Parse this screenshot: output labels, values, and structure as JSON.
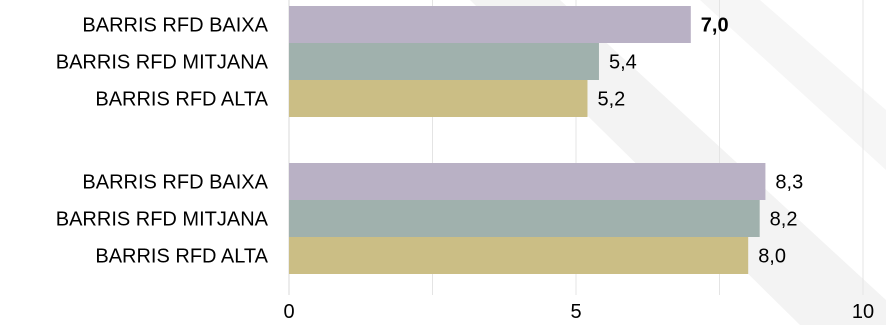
{
  "chart_data": {
    "type": "bar",
    "orientation": "horizontal",
    "xlim": [
      0,
      10
    ],
    "x_ticks": [
      "0",
      "5",
      "10"
    ],
    "grid": "vertical",
    "legend": "none",
    "groups": [
      {
        "bars": [
          {
            "category": "BARRIS RFD BAIXA",
            "value": 7.0,
            "label": "7,0",
            "bold": true,
            "color": "#b9b1c5"
          },
          {
            "category": "BARRIS RFD MITJANA",
            "value": 5.4,
            "label": "5,4",
            "bold": false,
            "color": "#a0b1ad"
          },
          {
            "category": "BARRIS RFD ALTA",
            "value": 5.2,
            "label": "5,2",
            "bold": false,
            "color": "#cbbe85"
          }
        ]
      },
      {
        "bars": [
          {
            "category": "BARRIS RFD BAIXA",
            "value": 8.3,
            "label": "8,3",
            "bold": false,
            "color": "#b9b1c5"
          },
          {
            "category": "BARRIS RFD MITJANA",
            "value": 8.2,
            "label": "8,2",
            "bold": false,
            "color": "#a0b1ad"
          },
          {
            "category": "BARRIS RFD ALTA",
            "value": 8.0,
            "label": "8,0",
            "bold": false,
            "color": "#cbbe85"
          }
        ]
      }
    ]
  }
}
